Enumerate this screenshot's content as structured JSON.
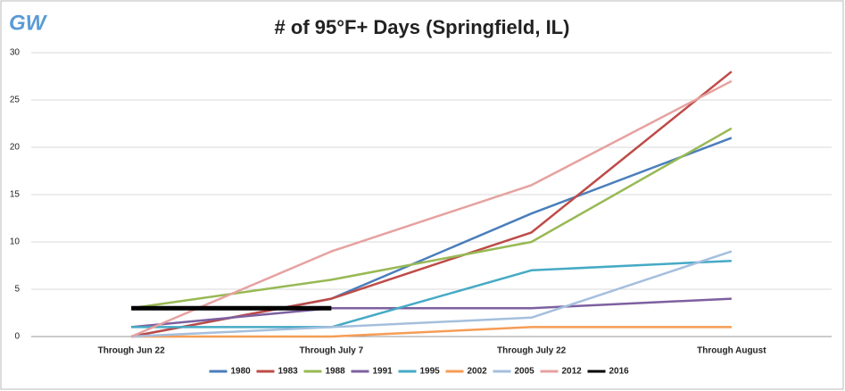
{
  "logo": "GW",
  "chart_data": {
    "type": "line",
    "title": "# of 95°F+ Days (Springfield, IL)",
    "categories": [
      "Through Jun 22",
      "Through July 7",
      "Through July 22",
      "Through August"
    ],
    "series": [
      {
        "name": "1980",
        "color": "#4a7ebb",
        "values": [
          0,
          4,
          13,
          21
        ]
      },
      {
        "name": "1983",
        "color": "#be4b48",
        "values": [
          0,
          4,
          11,
          28
        ]
      },
      {
        "name": "1988",
        "color": "#98b954",
        "values": [
          3,
          6,
          10,
          22
        ]
      },
      {
        "name": "1991",
        "color": "#7d60a0",
        "values": [
          1,
          3,
          3,
          4
        ]
      },
      {
        "name": "1995",
        "color": "#46aac5",
        "values": [
          1,
          1,
          7,
          8
        ]
      },
      {
        "name": "2002",
        "color": "#f59d56",
        "values": [
          0,
          0,
          1,
          1
        ]
      },
      {
        "name": "2005",
        "color": "#a5bfdd",
        "values": [
          0,
          1,
          2,
          9
        ]
      },
      {
        "name": "2012",
        "color": "#e6a2a0",
        "values": [
          0,
          9,
          16,
          27
        ]
      },
      {
        "name": "2016",
        "color": "#000000",
        "values": [
          3,
          3,
          null,
          null
        ]
      }
    ],
    "ylim": [
      0,
      30
    ],
    "yticks": [
      0,
      5,
      10,
      15,
      20,
      25,
      30
    ],
    "grid": true,
    "legend": "bottom"
  }
}
